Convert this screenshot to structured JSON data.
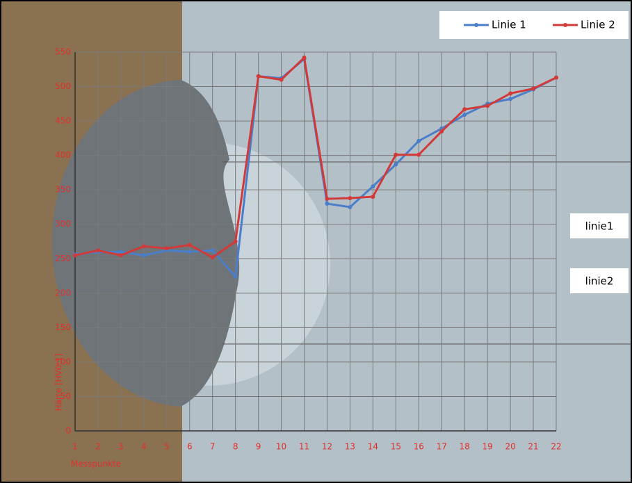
{
  "chart_data": {
    "type": "line",
    "xlabel": "Messpunkte",
    "ylabel": "Härte [HV0,1]",
    "categories": [
      "1",
      "2",
      "3",
      "4",
      "5",
      "6",
      "7",
      "8",
      "9",
      "10",
      "11",
      "12",
      "13",
      "14",
      "15",
      "16",
      "17",
      "18",
      "19",
      "20",
      "21",
      "22"
    ],
    "series": [
      {
        "name": "Linie 1",
        "color": "#4a7ec8",
        "values": [
          256,
          260,
          260,
          255,
          262,
          260,
          262,
          224,
          515,
          512,
          540,
          330,
          325,
          355,
          387,
          421,
          439,
          459,
          475,
          482,
          496,
          513
        ]
      },
      {
        "name": "Linie 2",
        "color": "#d23a3a",
        "values": [
          255,
          262,
          255,
          268,
          265,
          270,
          252,
          275,
          515,
          510,
          542,
          337,
          338,
          340,
          401,
          401,
          435,
          467,
          472,
          490,
          497,
          513
        ]
      }
    ],
    "ylim": [
      0,
      550
    ],
    "yticks": [
      0,
      50,
      100,
      150,
      200,
      250,
      300,
      350,
      400,
      450,
      500,
      550
    ],
    "grid": true,
    "legend": "top-right",
    "annotations": [
      "linie1",
      "linie2"
    ]
  }
}
